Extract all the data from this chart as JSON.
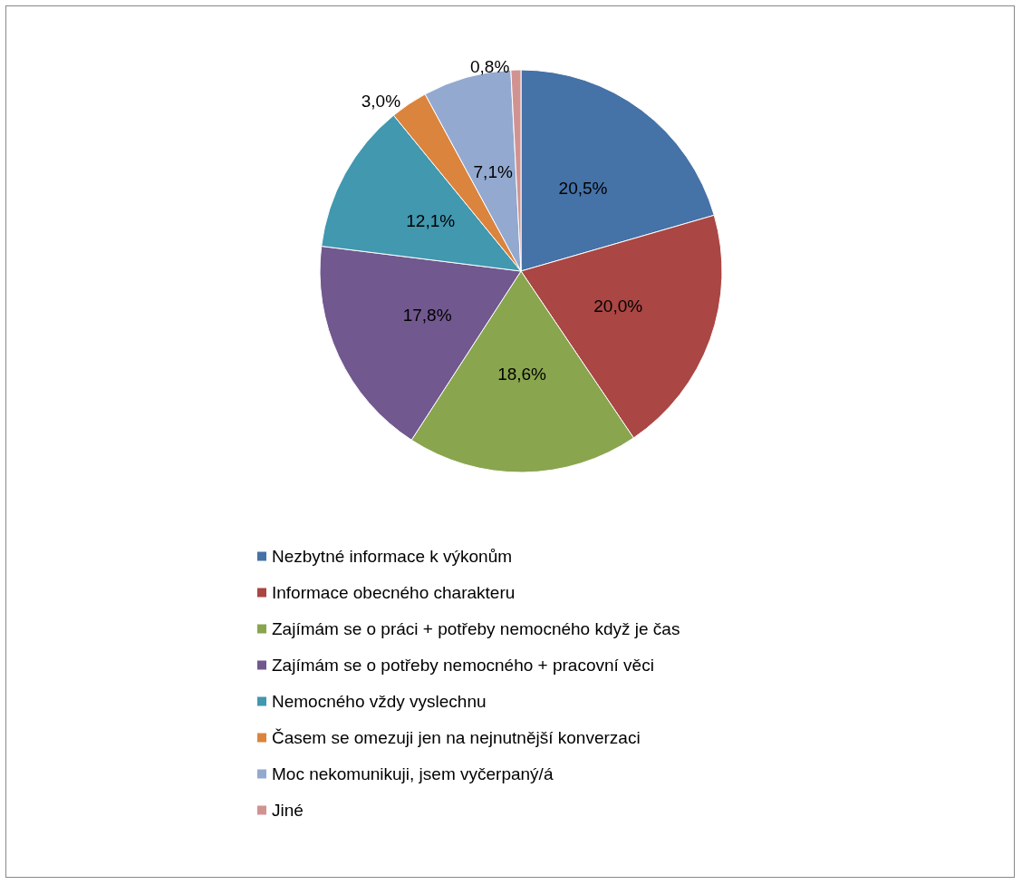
{
  "chart_data": {
    "type": "pie",
    "categories": [
      "Nezbytné informace k výkonům",
      "Informace obecného charakteru",
      "Zajímám se o práci + potřeby nemocného když je čas",
      "Zajímám se o potřeby nemocného + pracovní věci",
      "Nemocného vždy vyslechnu",
      "Časem se omezuji jen na nejnutnější konverzaci",
      "Moc nekomunikuji, jsem vyčerpaný/á",
      "Jiné"
    ],
    "values": [
      20.5,
      20.0,
      18.6,
      17.8,
      12.1,
      3.0,
      7.1,
      0.8
    ],
    "value_labels": [
      "20,5%",
      "20,0%",
      "18,6%",
      "17,8%",
      "12,1%",
      "3,0%",
      "7,1%",
      "0,8%"
    ],
    "colors": [
      "#4572a7",
      "#aa4643",
      "#89a54e",
      "#71588f",
      "#4198af",
      "#db843d",
      "#93a9cf",
      "#d19392"
    ],
    "legend": "bottom"
  }
}
